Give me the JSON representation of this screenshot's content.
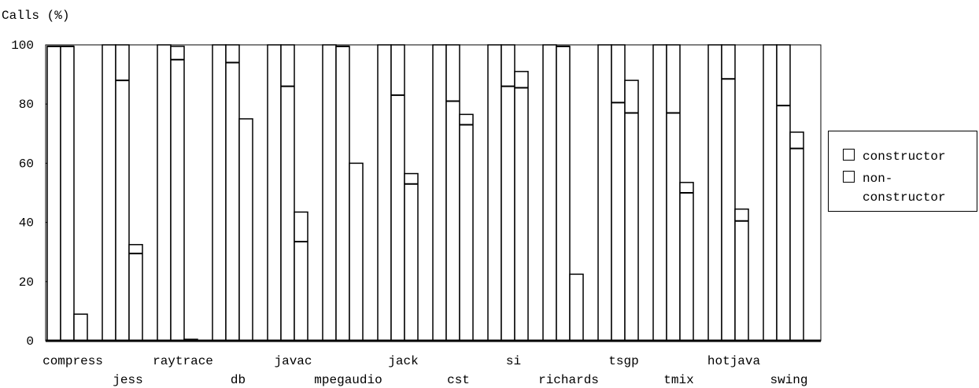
{
  "chart_data": {
    "type": "bar",
    "ylabel": "Calls (%)",
    "ylim": [
      0,
      100
    ],
    "yticks": [
      0,
      20,
      40,
      60,
      80,
      100
    ],
    "legend_position": "right",
    "legend": [
      "constructor",
      "non-\nconstructor"
    ],
    "categories": [
      "compress",
      "jess",
      "raytrace",
      "db",
      "javac",
      "mpegaudio",
      "jack",
      "cst",
      "si",
      "richards",
      "tsgp",
      "tmix",
      "hotjava",
      "swing"
    ],
    "label_rows": [
      0,
      1,
      0,
      1,
      0,
      1,
      0,
      1,
      0,
      1,
      0,
      1,
      0,
      1
    ],
    "groups": [
      {
        "bars": [
          {
            "top": 99.5,
            "mark": 99.5
          },
          {
            "top": 99.5,
            "mark": 99.5
          },
          {
            "top": 9,
            "mark": null
          }
        ]
      },
      {
        "bars": [
          {
            "top": 100,
            "mark": null
          },
          {
            "top": 100,
            "mark": 88
          },
          {
            "top": 32.5,
            "mark": 29.5
          }
        ]
      },
      {
        "bars": [
          {
            "top": 100,
            "mark": null
          },
          {
            "top": 99.5,
            "mark": 95
          },
          {
            "top": 0.5,
            "mark": null
          }
        ]
      },
      {
        "bars": [
          {
            "top": 100,
            "mark": null
          },
          {
            "top": 100,
            "mark": 94
          },
          {
            "top": 75,
            "mark": null
          }
        ]
      },
      {
        "bars": [
          {
            "top": 100,
            "mark": null
          },
          {
            "top": 100,
            "mark": 86
          },
          {
            "top": 43.5,
            "mark": 33.5
          }
        ]
      },
      {
        "bars": [
          {
            "top": 100,
            "mark": null
          },
          {
            "top": 99.5,
            "mark": 99.5
          },
          {
            "top": 60,
            "mark": null
          }
        ]
      },
      {
        "bars": [
          {
            "top": 100,
            "mark": null
          },
          {
            "top": 100,
            "mark": 83
          },
          {
            "top": 56.5,
            "mark": 53
          }
        ]
      },
      {
        "bars": [
          {
            "top": 100,
            "mark": null
          },
          {
            "top": 100,
            "mark": 81
          },
          {
            "top": 76.5,
            "mark": 73
          }
        ]
      },
      {
        "bars": [
          {
            "top": 100,
            "mark": null
          },
          {
            "top": 100,
            "mark": 86
          },
          {
            "top": 91,
            "mark": 85.5
          }
        ]
      },
      {
        "bars": [
          {
            "top": 100,
            "mark": null
          },
          {
            "top": 99.5,
            "mark": 99.5
          },
          {
            "top": 22.5,
            "mark": null
          }
        ]
      },
      {
        "bars": [
          {
            "top": 100,
            "mark": null
          },
          {
            "top": 100,
            "mark": 80.5
          },
          {
            "top": 88,
            "mark": 77
          }
        ]
      },
      {
        "bars": [
          {
            "top": 100,
            "mark": null
          },
          {
            "top": 100,
            "mark": 77
          },
          {
            "top": 53.5,
            "mark": 50
          }
        ]
      },
      {
        "bars": [
          {
            "top": 100,
            "mark": null
          },
          {
            "top": 100,
            "mark": 88.5
          },
          {
            "top": 44.5,
            "mark": 40.5
          }
        ]
      },
      {
        "bars": [
          {
            "top": 100,
            "mark": null
          },
          {
            "top": 100,
            "mark": 79.5
          },
          {
            "top": 70.5,
            "mark": 65
          }
        ]
      }
    ]
  }
}
